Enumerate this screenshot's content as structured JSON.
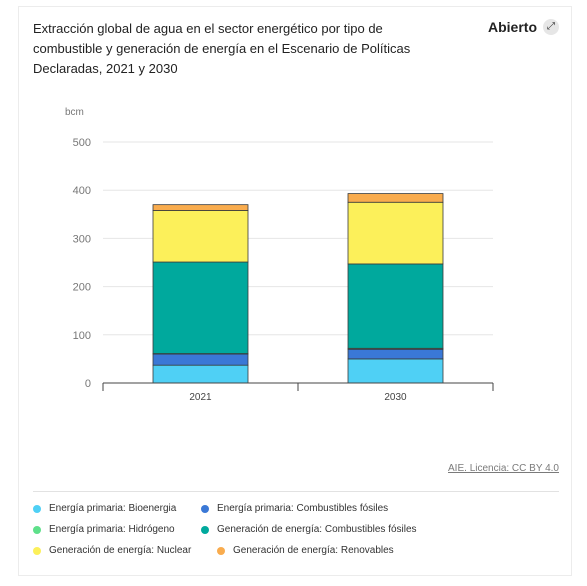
{
  "header": {
    "title": "Extracción global de agua en el sector energético por tipo de combustible y generación de energía en el Escenario de Políticas Declaradas, 2021 y 2030",
    "open_label": "Abierto",
    "open_icon": "expand-icon"
  },
  "footer": {
    "license": "AIE. Licencia: CC BY 4.0"
  },
  "chart_data": {
    "type": "bar",
    "stacked": true,
    "unit_label": "bcm",
    "categories": [
      "2021",
      "2030"
    ],
    "ylim": [
      0,
      500
    ],
    "yticks": [
      0,
      100,
      200,
      300,
      400,
      500
    ],
    "grid": true,
    "legend_position": "bottom",
    "series": [
      {
        "name": "Energía primaria: Bioenergia",
        "color": "#4fd0f5",
        "values": [
          37,
          50
        ]
      },
      {
        "name": "Energía primaria: Combustibles fósiles",
        "color": "#3a78d6",
        "values": [
          23,
          20
        ]
      },
      {
        "name": "Energía primaria: Hidrógeno",
        "color": "#5ee08a",
        "values": [
          1,
          2
        ]
      },
      {
        "name": "Generación de energía: Combustibles fósiles",
        "color": "#00a99d",
        "values": [
          190,
          175
        ]
      },
      {
        "name": "Generación de energía: Nuclear",
        "color": "#fcf05a",
        "values": [
          107,
          128
        ]
      },
      {
        "name": "Generación de energía: Renovables",
        "color": "#f9ac4e",
        "values": [
          12,
          18
        ]
      }
    ]
  }
}
